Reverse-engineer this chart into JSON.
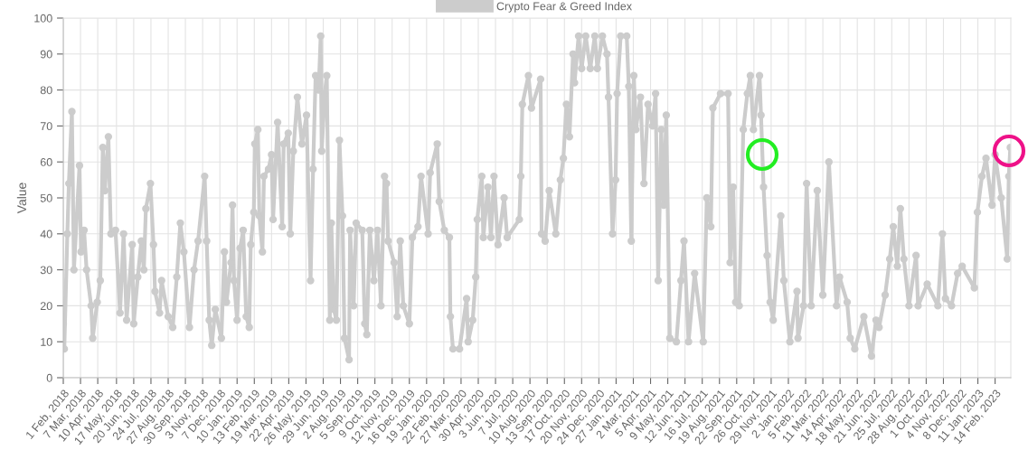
{
  "chart_data": {
    "type": "line",
    "ylabel": "Value",
    "legend": "top",
    "grid": true,
    "marker": "circle",
    "line_style": "solid",
    "ylim": [
      0,
      100
    ],
    "yticks": [
      0,
      10,
      20,
      30,
      40,
      50,
      60,
      70,
      80,
      90,
      100
    ],
    "xlim": [
      "2018-02-01",
      "2023-03-17"
    ],
    "xticks": [
      {
        "value": "2018-02-01",
        "label": "1 Feb, 2018"
      },
      {
        "value": "2018-03-07",
        "label": "7 Mar, 2018"
      },
      {
        "value": "2018-04-10",
        "label": "10 Apr, 2018"
      },
      {
        "value": "2018-05-17",
        "label": "17 May, 2018"
      },
      {
        "value": "2018-06-20",
        "label": "20 Jun, 2018"
      },
      {
        "value": "2018-07-24",
        "label": "24 Jul, 2018"
      },
      {
        "value": "2018-08-27",
        "label": "27 Aug, 2018"
      },
      {
        "value": "2018-09-30",
        "label": "30 Sep, 2018"
      },
      {
        "value": "2018-11-03",
        "label": "3 Nov, 2018"
      },
      {
        "value": "2018-12-07",
        "label": "7 Dec, 2018"
      },
      {
        "value": "2019-01-10",
        "label": "10 Jan, 2019"
      },
      {
        "value": "2019-02-13",
        "label": "13 Feb, 2019"
      },
      {
        "value": "2019-03-19",
        "label": "19 Mar, 2019"
      },
      {
        "value": "2019-04-22",
        "label": "22 Apr, 2019"
      },
      {
        "value": "2019-05-26",
        "label": "26 May, 2019"
      },
      {
        "value": "2019-06-29",
        "label": "29 Jun, 2019"
      },
      {
        "value": "2019-08-02",
        "label": "2 Aug, 2019"
      },
      {
        "value": "2019-09-05",
        "label": "5 Sep, 2019"
      },
      {
        "value": "2019-10-09",
        "label": "9 Oct, 2019"
      },
      {
        "value": "2019-11-12",
        "label": "12 Nov, 2019"
      },
      {
        "value": "2019-12-16",
        "label": "16 Dec, 2019"
      },
      {
        "value": "2020-01-19",
        "label": "19 Jan, 2020"
      },
      {
        "value": "2020-02-22",
        "label": "22 Feb, 2020"
      },
      {
        "value": "2020-03-27",
        "label": "27 Mar, 2020"
      },
      {
        "value": "2020-04-30",
        "label": "30 Apr, 2020"
      },
      {
        "value": "2020-06-03",
        "label": "3 Jun, 2020"
      },
      {
        "value": "2020-07-07",
        "label": "7 Jul, 2020"
      },
      {
        "value": "2020-08-10",
        "label": "10 Aug, 2020"
      },
      {
        "value": "2020-09-13",
        "label": "13 Sep, 2020"
      },
      {
        "value": "2020-10-17",
        "label": "17 Oct, 2020"
      },
      {
        "value": "2020-11-20",
        "label": "20 Nov, 2020"
      },
      {
        "value": "2020-12-24",
        "label": "24 Dec, 2020"
      },
      {
        "value": "2021-01-27",
        "label": "27 Jan, 2021"
      },
      {
        "value": "2021-03-02",
        "label": "2 Mar, 2021"
      },
      {
        "value": "2021-04-05",
        "label": "5 Apr, 2021"
      },
      {
        "value": "2021-05-09",
        "label": "9 May, 2021"
      },
      {
        "value": "2021-06-12",
        "label": "12 Jun, 2021"
      },
      {
        "value": "2021-07-16",
        "label": "16 Jul, 2021"
      },
      {
        "value": "2021-08-19",
        "label": "19 Aug, 2021"
      },
      {
        "value": "2021-09-22",
        "label": "22 Sep, 2021"
      },
      {
        "value": "2021-10-26",
        "label": "26 Oct, 2021"
      },
      {
        "value": "2021-11-29",
        "label": "29 Nov, 2021"
      },
      {
        "value": "2022-01-02",
        "label": "2 Jan, 2022"
      },
      {
        "value": "2022-02-05",
        "label": "5 Feb, 2022"
      },
      {
        "value": "2022-03-11",
        "label": "11 Mar, 2022"
      },
      {
        "value": "2022-04-14",
        "label": "14 Apr, 2022"
      },
      {
        "value": "2022-05-18",
        "label": "18 May, 2022"
      },
      {
        "value": "2022-06-21",
        "label": "21 Jun, 2022"
      },
      {
        "value": "2022-07-25",
        "label": "25 Jul, 2022"
      },
      {
        "value": "2022-08-28",
        "label": "28 Aug, 2022"
      },
      {
        "value": "2022-10-01",
        "label": "1 Oct, 2022"
      },
      {
        "value": "2022-11-04",
        "label": "4 Nov, 2022"
      },
      {
        "value": "2022-12-08",
        "label": "8 Dec, 2022"
      },
      {
        "value": "2023-01-11",
        "label": "11 Jan, 2023"
      },
      {
        "value": "2023-02-14",
        "label": "14 Feb, 2023"
      }
    ],
    "series": [
      {
        "name": "Crypto Fear & Greed Index",
        "color": "#cccccc",
        "x": [
          "2018-02-01",
          "2018-02-03",
          "2018-02-09",
          "2018-02-12",
          "2018-02-18",
          "2018-02-22",
          "2018-03-05",
          "2018-03-08",
          "2018-03-14",
          "2018-03-19",
          "2018-03-28",
          "2018-03-31",
          "2018-04-09",
          "2018-04-15",
          "2018-04-20",
          "2018-04-24",
          "2018-05-01",
          "2018-05-06",
          "2018-05-15",
          "2018-05-24",
          "2018-05-31",
          "2018-06-06",
          "2018-06-17",
          "2018-06-20",
          "2018-06-28",
          "2018-07-05",
          "2018-07-10",
          "2018-07-14",
          "2018-07-23",
          "2018-07-29",
          "2018-08-01",
          "2018-08-10",
          "2018-08-14",
          "2018-08-27",
          "2018-09-05",
          "2018-09-13",
          "2018-09-20",
          "2018-09-27",
          "2018-10-08",
          "2018-10-17",
          "2018-10-25",
          "2018-11-07",
          "2018-11-11",
          "2018-11-16",
          "2018-11-21",
          "2018-11-28",
          "2018-12-10",
          "2018-12-16",
          "2018-12-20",
          "2018-12-29",
          "2019-01-01",
          "2019-01-04",
          "2019-01-10",
          "2019-01-16",
          "2019-01-22",
          "2019-01-28",
          "2019-02-03",
          "2019-02-06",
          "2019-02-12",
          "2019-02-14",
          "2019-02-20",
          "2019-02-23",
          "2019-03-01",
          "2019-03-04",
          "2019-03-13",
          "2019-03-19",
          "2019-03-22",
          "2019-03-31",
          "2019-04-09",
          "2019-04-12",
          "2019-04-21",
          "2019-04-25",
          "2019-05-01",
          "2019-05-09",
          "2019-05-18",
          "2019-05-27",
          "2019-06-04",
          "2019-06-09",
          "2019-06-14",
          "2019-06-20",
          "2019-06-24",
          "2019-06-26",
          "2019-07-02",
          "2019-07-06",
          "2019-07-12",
          "2019-07-15",
          "2019-07-20",
          "2019-07-25",
          "2019-07-31",
          "2019-08-06",
          "2019-08-10",
          "2019-08-19",
          "2019-08-21",
          "2019-08-28",
          "2019-09-02",
          "2019-09-14",
          "2019-09-19",
          "2019-09-23",
          "2019-09-29",
          "2019-10-07",
          "2019-10-14",
          "2019-10-21",
          "2019-10-28",
          "2019-11-01",
          "2019-11-04",
          "2019-11-16",
          "2019-11-22",
          "2019-11-28",
          "2019-12-04",
          "2019-12-16",
          "2019-12-22",
          "2020-01-02",
          "2020-01-08",
          "2020-01-22",
          "2020-01-26",
          "2020-02-09",
          "2020-02-13",
          "2020-02-23",
          "2020-03-04",
          "2020-03-06",
          "2020-03-11",
          "2020-03-24",
          "2020-04-07",
          "2020-04-10",
          "2020-04-19",
          "2020-04-25",
          "2020-04-28",
          "2020-05-07",
          "2020-05-10",
          "2020-05-19",
          "2020-05-25",
          "2020-05-31",
          "2020-06-08",
          "2020-06-20",
          "2020-06-26",
          "2020-07-20",
          "2020-07-23",
          "2020-07-26",
          "2020-08-07",
          "2020-08-13",
          "2020-08-31",
          "2020-09-02",
          "2020-09-09",
          "2020-09-17",
          "2020-09-30",
          "2020-10-09",
          "2020-10-15",
          "2020-10-21",
          "2020-10-27",
          "2020-11-03",
          "2020-11-06",
          "2020-11-14",
          "2020-11-20",
          "2020-11-28",
          "2020-12-07",
          "2020-12-16",
          "2020-12-21",
          "2020-12-31",
          "2021-01-09",
          "2021-01-12",
          "2021-01-20",
          "2021-01-26",
          "2021-01-29",
          "2021-02-05",
          "2021-02-17",
          "2021-02-21",
          "2021-02-26",
          "2021-03-03",
          "2021-03-07",
          "2021-03-16",
          "2021-03-23",
          "2021-03-31",
          "2021-04-09",
          "2021-04-15",
          "2021-04-20",
          "2021-04-26",
          "2021-05-01",
          "2021-05-06",
          "2021-05-13",
          "2021-05-26",
          "2021-06-04",
          "2021-06-10",
          "2021-06-19",
          "2021-07-01",
          "2021-07-18",
          "2021-07-25",
          "2021-08-02",
          "2021-08-06",
          "2021-08-21",
          "2021-09-05",
          "2021-09-09",
          "2021-09-15",
          "2021-09-20",
          "2021-09-27",
          "2021-10-05",
          "2021-10-13",
          "2021-10-19",
          "2021-10-25",
          "2021-11-06",
          "2021-11-09",
          "2021-11-14",
          "2021-11-21",
          "2021-11-27",
          "2021-12-03",
          "2021-12-18",
          "2021-12-24",
          "2022-01-05",
          "2022-01-19",
          "2022-01-21",
          "2022-02-01",
          "2022-02-07",
          "2022-02-16",
          "2022-02-28",
          "2022-03-11",
          "2022-03-23",
          "2022-04-07",
          "2022-04-13",
          "2022-04-28",
          "2022-05-04",
          "2022-05-13",
          "2022-05-31",
          "2022-06-15",
          "2022-06-24",
          "2022-06-30",
          "2022-07-12",
          "2022-07-21",
          "2022-07-28",
          "2022-08-05",
          "2022-08-11",
          "2022-08-18",
          "2022-08-28",
          "2022-09-11",
          "2022-09-15",
          "2022-10-03",
          "2022-10-24",
          "2022-11-02",
          "2022-11-08",
          "2022-11-20",
          "2022-12-02",
          "2022-12-11",
          "2023-01-04",
          "2023-01-10",
          "2023-01-19",
          "2023-01-27",
          "2023-02-08",
          "2023-02-14",
          "2023-02-26",
          "2023-03-10",
          "2023-03-13",
          "2023-03-16"
        ],
        "values": [
          15,
          8,
          40,
          54,
          74,
          30,
          59,
          35,
          41,
          30,
          20,
          11,
          21,
          27,
          64,
          52,
          67,
          40,
          41,
          18,
          40,
          16,
          37,
          15,
          28,
          38,
          30,
          47,
          54,
          37,
          24,
          18,
          27,
          17,
          14,
          28,
          43,
          35,
          14,
          30,
          38,
          56,
          38,
          16,
          9,
          19,
          11,
          35,
          21,
          32,
          48,
          27,
          16,
          36,
          41,
          17,
          14,
          37,
          46,
          65,
          69,
          45,
          35,
          56,
          58,
          62,
          44,
          71,
          42,
          65,
          68,
          40,
          63,
          78,
          65,
          73,
          27,
          58,
          84,
          80,
          95,
          63,
          79,
          84,
          16,
          43,
          19,
          16,
          66,
          45,
          11,
          5,
          41,
          20,
          43,
          41,
          15,
          12,
          41,
          27,
          41,
          20,
          56,
          54,
          38,
          32,
          17,
          38,
          20,
          15,
          39,
          42,
          56,
          40,
          57,
          65,
          49,
          41,
          39,
          17,
          8,
          8,
          22,
          10,
          16,
          28,
          44,
          56,
          39,
          53,
          39,
          56,
          37,
          50,
          39,
          44,
          56,
          76,
          84,
          75,
          83,
          40,
          38,
          52,
          40,
          55,
          61,
          76,
          67,
          90,
          82,
          95,
          86,
          95,
          86,
          95,
          86,
          95,
          90,
          78,
          40,
          55,
          79,
          95,
          95,
          81,
          38,
          84,
          69,
          78,
          54,
          76,
          70,
          79,
          27,
          69,
          48,
          73,
          11,
          10,
          27,
          38,
          10,
          29,
          10,
          50,
          42,
          75,
          79,
          79,
          32,
          53,
          21,
          20,
          69,
          79,
          84,
          69,
          84,
          73,
          53,
          34,
          21,
          16,
          45,
          27,
          10,
          24,
          11,
          20,
          54,
          20,
          52,
          23,
          60,
          20,
          28,
          21,
          11,
          8,
          17,
          6,
          16,
          14,
          23,
          33,
          42,
          31,
          47,
          33,
          20,
          34,
          20,
          26,
          20,
          40,
          22,
          20,
          29,
          31,
          25,
          46,
          56,
          61,
          48,
          62,
          50,
          33,
          56,
          64
        ]
      }
    ]
  }
}
